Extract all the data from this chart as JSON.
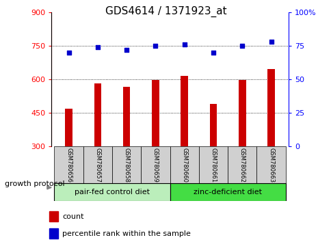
{
  "title": "GDS4614 / 1371923_at",
  "samples": [
    "GSM780656",
    "GSM780657",
    "GSM780658",
    "GSM780659",
    "GSM780660",
    "GSM780661",
    "GSM780662",
    "GSM780663"
  ],
  "counts": [
    470,
    580,
    565,
    597,
    615,
    490,
    598,
    645
  ],
  "percentiles": [
    70,
    74,
    72,
    75,
    76,
    70,
    75,
    78
  ],
  "ylim_left": [
    300,
    900
  ],
  "ylim_right": [
    0,
    100
  ],
  "yticks_left": [
    300,
    450,
    600,
    750,
    900
  ],
  "yticks_right": [
    0,
    25,
    50,
    75,
    100
  ],
  "bar_color": "#cc0000",
  "dot_color": "#0000cc",
  "group1_label": "pair-fed control diet",
  "group2_label": "zinc-deficient diet",
  "group1_color": "#bbeebb",
  "group2_color": "#44dd44",
  "group_label": "growth protocol",
  "bar_width": 0.25,
  "grid_yticks": [
    450,
    600,
    750
  ],
  "title_fontsize": 11,
  "tick_fontsize": 8,
  "label_fontsize": 8,
  "sample_fontsize": 6,
  "legend_fontsize": 8
}
